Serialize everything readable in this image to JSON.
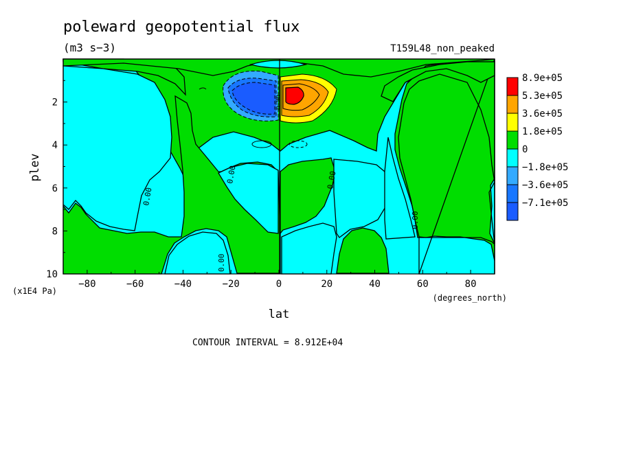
{
  "chart_data": {
    "type": "heatmap",
    "title": "poleward geopotential flux",
    "units": "(m3 s−3)",
    "run_label": "T159L48_non_peaked",
    "xlabel": "lat",
    "x_units": "(degrees_north)",
    "ylabel": "plev",
    "y_units": "(x1E4 Pa)",
    "xlim": [
      -90,
      90
    ],
    "ylim": [
      10,
      0
    ],
    "x_ticks": [
      -80,
      -60,
      -40,
      -20,
      0,
      20,
      40,
      60,
      80
    ],
    "y_ticks": [
      2,
      4,
      6,
      8,
      10
    ],
    "contour_interval_text": "CONTOUR INTERVAL = 8.912E+04",
    "contour_labels": [
      "0.00",
      "0.00",
      "0.00",
      "0.00",
      "0.00",
      "0.00"
    ],
    "legend": [
      {
        "label": "8.9e+05",
        "color": "#ff0000"
      },
      {
        "label": "5.3e+05",
        "color": "#ffa500"
      },
      {
        "label": "3.6e+05",
        "color": "#ffff00"
      },
      {
        "label": "1.8e+05",
        "color": "#00dd00"
      },
      {
        "label": "0",
        "color": "#00ffff"
      },
      {
        "label": "−1.8e+05",
        "color": "#33aaff"
      },
      {
        "label": "−3.6e+05",
        "color": "#1877ff"
      },
      {
        "label": "−7.1e+05",
        "color": "#1a5cff"
      }
    ],
    "extrema": [
      {
        "sign": "positive",
        "lat": 6,
        "plev": 1.9
      },
      {
        "sign": "negative",
        "lat": -7,
        "plev": 1.9
      }
    ]
  }
}
